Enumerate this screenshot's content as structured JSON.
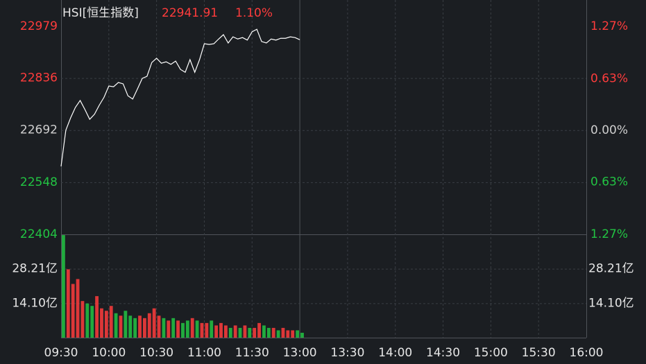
{
  "chart_data": [
    {
      "type": "line",
      "title": "HSI[恒生指数]",
      "annotations": [
        "22941.91",
        "1.10%"
      ],
      "colors": {
        "up": "#ff3c3c",
        "down": "#22c443",
        "flat": "#cfcfcf",
        "text": "#e6e6e6"
      },
      "x": [
        0,
        3,
        6,
        9,
        12,
        15,
        18,
        21,
        24,
        27,
        30,
        33,
        36,
        39,
        42,
        45,
        48,
        51,
        54,
        57,
        60,
        63,
        66,
        69,
        72,
        75,
        78,
        81,
        84,
        87,
        90,
        93,
        96,
        99,
        102,
        105,
        108,
        111,
        114,
        117,
        120,
        123,
        126,
        129,
        132,
        135,
        138,
        141,
        144,
        147,
        150
      ],
      "series": [
        {
          "color": "#ffffff",
          "values": [
            22592,
            22692,
            22726,
            22755,
            22774,
            22749,
            22722,
            22736,
            22761,
            22783,
            22814,
            22812,
            22824,
            22820,
            22787,
            22778,
            22806,
            22835,
            22841,
            22879,
            22891,
            22877,
            22881,
            22874,
            22883,
            22860,
            22852,
            22887,
            22852,
            22887,
            22931,
            22929,
            22931,
            22944,
            22956,
            22933,
            22950,
            22944,
            22948,
            22941,
            22964,
            22971,
            22937,
            22933,
            22944,
            22941,
            22946,
            22946,
            22950,
            22948,
            22942
          ]
        }
      ],
      "xlim": [
        0,
        330
      ],
      "xticks": [
        {
          "value": 0,
          "label": "09:30"
        },
        {
          "value": 30,
          "label": "10:00"
        },
        {
          "value": 60,
          "label": "10:30"
        },
        {
          "value": 90,
          "label": "11:00"
        },
        {
          "value": 120,
          "label": "11:30"
        },
        {
          "value": 150,
          "label": "13:00"
        },
        {
          "value": 180,
          "label": "13:30"
        },
        {
          "value": 210,
          "label": "14:00"
        },
        {
          "value": 240,
          "label": "14:30"
        },
        {
          "value": 270,
          "label": "15:00"
        },
        {
          "value": 300,
          "label": "15:30"
        },
        {
          "value": 330,
          "label": "16:00"
        }
      ],
      "ylim": [
        22404,
        22979
      ],
      "yticks": [
        22979,
        22836,
        22692,
        22548,
        22404
      ],
      "y2lim": [
        -1.27,
        1.27
      ],
      "y2ticks": [
        {
          "value": 1.27,
          "label": "1.27%"
        },
        {
          "value": 0.63,
          "label": "0.63%"
        },
        {
          "value": 0,
          "label": "0.00%"
        },
        {
          "value": -0.63,
          "label": "0.63%"
        },
        {
          "value": -1.27,
          "label": "1.27%"
        }
      ],
      "grid": true
    },
    {
      "type": "bar",
      "x": [
        0,
        3,
        6,
        9,
        12,
        15,
        18,
        21,
        24,
        27,
        30,
        33,
        36,
        39,
        42,
        45,
        48,
        51,
        54,
        57,
        60,
        63,
        66,
        69,
        72,
        75,
        78,
        81,
        84,
        87,
        90,
        93,
        96,
        99,
        102,
        105,
        108,
        111,
        114,
        117,
        120,
        123,
        126,
        129,
        132,
        135,
        138,
        141,
        144,
        147,
        150
      ],
      "values": [
        42,
        28,
        22,
        24,
        15,
        14,
        13,
        17,
        12,
        11,
        13,
        10,
        9,
        11,
        9,
        8,
        9,
        8,
        10,
        12,
        9,
        8,
        7,
        8,
        7,
        6,
        7,
        8,
        7,
        6,
        6,
        7,
        5,
        6,
        5,
        4,
        5,
        4,
        5,
        4,
        4,
        6,
        5,
        4,
        4,
        3,
        4,
        3,
        3,
        3,
        2
      ],
      "ylim": [
        0,
        42.31
      ],
      "yticks": [
        {
          "value": 28.21,
          "label": "28.21亿"
        },
        {
          "value": 14.1,
          "label": "14.10亿"
        }
      ],
      "grid": true
    }
  ]
}
